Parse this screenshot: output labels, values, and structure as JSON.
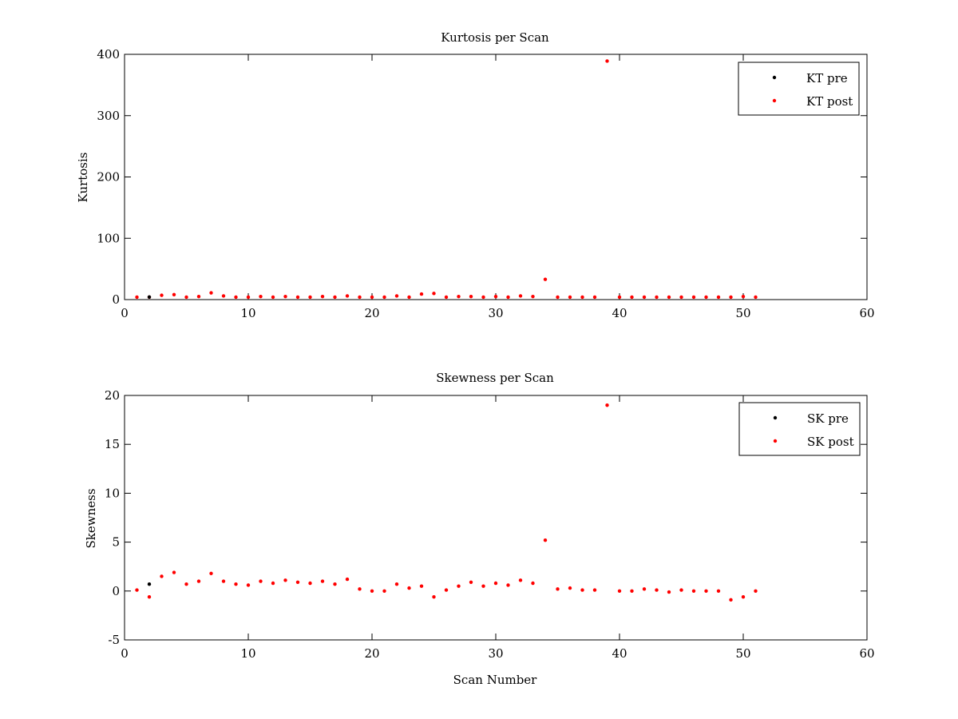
{
  "chart_data": [
    {
      "type": "scatter",
      "title": "Kurtosis per Scan",
      "xlabel": "",
      "ylabel": "Kurtosis",
      "xlim": [
        0,
        60
      ],
      "ylim": [
        0,
        400
      ],
      "xticks": [
        0,
        10,
        20,
        30,
        40,
        50,
        60
      ],
      "yticks": [
        0,
        100,
        200,
        300,
        400
      ],
      "grid": false,
      "legend_position": "top-right",
      "series": [
        {
          "name": "KT pre",
          "color": "#000000",
          "points": [
            [
              2,
              4.2
            ]
          ]
        },
        {
          "name": "KT post",
          "color": "#ff0000",
          "points": [
            [
              1,
              4
            ],
            [
              2,
              4
            ],
            [
              3,
              7
            ],
            [
              4,
              8
            ],
            [
              5,
              4
            ],
            [
              6,
              5
            ],
            [
              7,
              11
            ],
            [
              8,
              6
            ],
            [
              9,
              4
            ],
            [
              10,
              4
            ],
            [
              11,
              5
            ],
            [
              12,
              4
            ],
            [
              13,
              5
            ],
            [
              14,
              4
            ],
            [
              15,
              4
            ],
            [
              16,
              5
            ],
            [
              17,
              4
            ],
            [
              18,
              6
            ],
            [
              19,
              4
            ],
            [
              20,
              4
            ],
            [
              21,
              4
            ],
            [
              22,
              6
            ],
            [
              23,
              4
            ],
            [
              24,
              9
            ],
            [
              25,
              10
            ],
            [
              26,
              4
            ],
            [
              27,
              5
            ],
            [
              28,
              5
            ],
            [
              29,
              4
            ],
            [
              30,
              5
            ],
            [
              31,
              4
            ],
            [
              32,
              6
            ],
            [
              33,
              5
            ],
            [
              34,
              33
            ],
            [
              35,
              4
            ],
            [
              36,
              4
            ],
            [
              37,
              4
            ],
            [
              38,
              4
            ],
            [
              39,
              389
            ],
            [
              40,
              4
            ],
            [
              41,
              4
            ],
            [
              42,
              4
            ],
            [
              43,
              4
            ],
            [
              44,
              4
            ],
            [
              45,
              4
            ],
            [
              46,
              4
            ],
            [
              47,
              4
            ],
            [
              48,
              4
            ],
            [
              49,
              4
            ],
            [
              50,
              5
            ],
            [
              51,
              4
            ]
          ]
        }
      ]
    },
    {
      "type": "scatter",
      "title": "Skewness per Scan",
      "xlabel": "Scan Number",
      "ylabel": "Skewness",
      "xlim": [
        0,
        60
      ],
      "ylim": [
        -5,
        20
      ],
      "xticks": [
        0,
        10,
        20,
        30,
        40,
        50,
        60
      ],
      "yticks": [
        -5,
        0,
        5,
        10,
        15,
        20
      ],
      "grid": false,
      "legend_position": "top-right",
      "series": [
        {
          "name": "SK pre",
          "color": "#000000",
          "points": [
            [
              2,
              0.7
            ]
          ]
        },
        {
          "name": "SK post",
          "color": "#ff0000",
          "points": [
            [
              1,
              0.1
            ],
            [
              2,
              -0.6
            ],
            [
              3,
              1.5
            ],
            [
              4,
              1.9
            ],
            [
              5,
              0.7
            ],
            [
              6,
              1.0
            ],
            [
              7,
              1.8
            ],
            [
              8,
              1.0
            ],
            [
              9,
              0.7
            ],
            [
              10,
              0.6
            ],
            [
              11,
              1.0
            ],
            [
              12,
              0.8
            ],
            [
              13,
              1.1
            ],
            [
              14,
              0.9
            ],
            [
              15,
              0.8
            ],
            [
              16,
              1.0
            ],
            [
              17,
              0.7
            ],
            [
              18,
              1.2
            ],
            [
              19,
              0.2
            ],
            [
              20,
              0.0
            ],
            [
              21,
              0.0
            ],
            [
              22,
              0.7
            ],
            [
              23,
              0.3
            ],
            [
              24,
              0.5
            ],
            [
              25,
              -0.6
            ],
            [
              26,
              0.1
            ],
            [
              27,
              0.5
            ],
            [
              28,
              0.9
            ],
            [
              29,
              0.5
            ],
            [
              30,
              0.8
            ],
            [
              31,
              0.6
            ],
            [
              32,
              1.1
            ],
            [
              33,
              0.8
            ],
            [
              34,
              5.2
            ],
            [
              35,
              0.2
            ],
            [
              36,
              0.3
            ],
            [
              37,
              0.1
            ],
            [
              38,
              0.1
            ],
            [
              39,
              19.0
            ],
            [
              40,
              0.0
            ],
            [
              41,
              0.0
            ],
            [
              42,
              0.2
            ],
            [
              43,
              0.1
            ],
            [
              44,
              -0.1
            ],
            [
              45,
              0.1
            ],
            [
              46,
              0.0
            ],
            [
              47,
              0.0
            ],
            [
              48,
              0.0
            ],
            [
              49,
              -0.9
            ],
            [
              50,
              -0.6
            ],
            [
              51,
              0.0
            ]
          ]
        }
      ]
    }
  ]
}
